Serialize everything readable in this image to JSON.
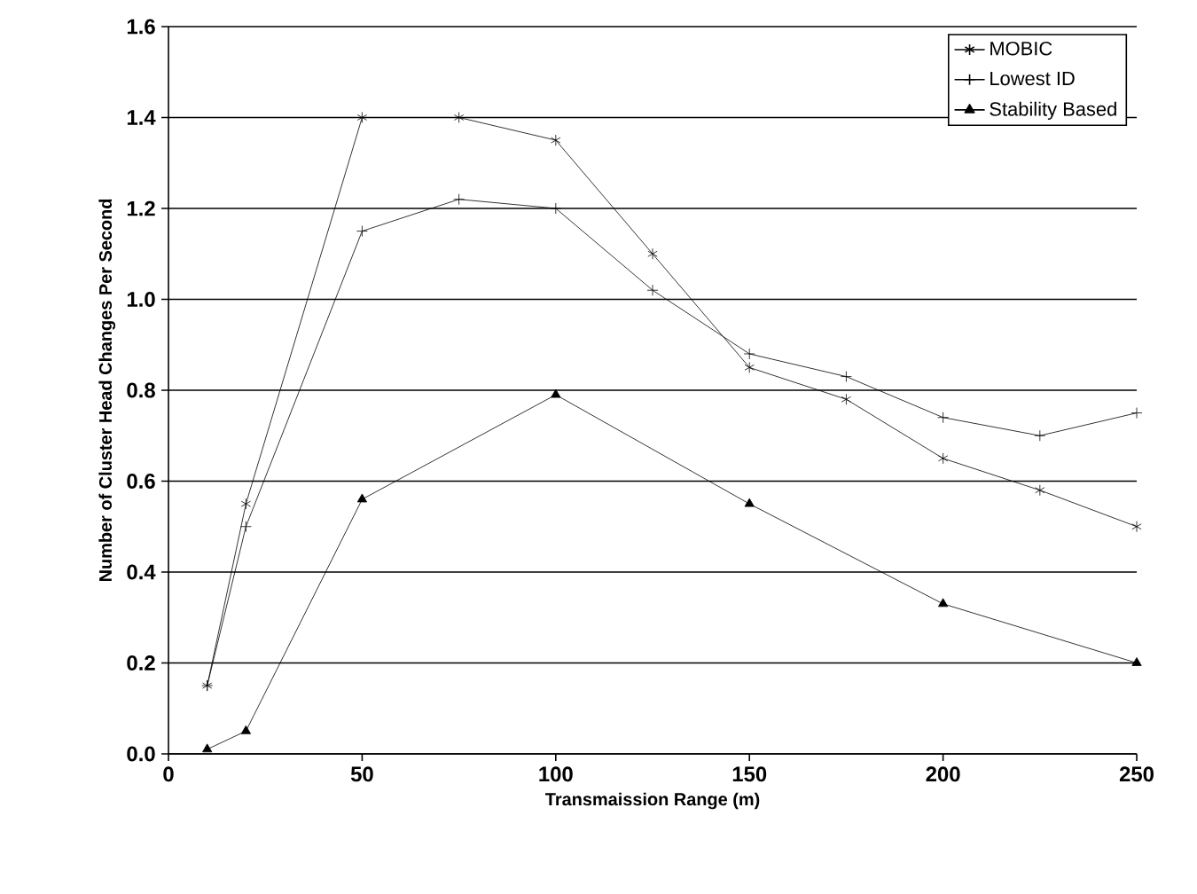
{
  "chart_data": {
    "type": "line",
    "xlabel": "Transmaission Range (m)",
    "ylabel": "Number of Cluster Head Changes Per Second",
    "xlim": [
      0,
      250
    ],
    "xticks": [
      0,
      50,
      100,
      150,
      200,
      250
    ],
    "ylim": [
      0,
      1.6
    ],
    "yticks": [
      {
        "value": 0,
        "label": "0.0"
      },
      0.2,
      0.4,
      0.6,
      0.8,
      {
        "value": 1,
        "label": "1.0"
      },
      1.2,
      1.4,
      1.6
    ],
    "grid": "y",
    "legend": "top right",
    "series": [
      {
        "name": "MOBIC",
        "color": "#000000",
        "marker": "cross",
        "x": [
          10,
          20,
          50,
          75,
          100,
          125,
          150,
          175,
          200,
          225,
          250
        ],
        "values": [
          0.15,
          0.55,
          1.4,
          1.4,
          1.35,
          1.1,
          0.85,
          0.78,
          0.65,
          0.58,
          0.5
        ]
      },
      {
        "name": "Lowest ID",
        "color": "#000000",
        "marker": "cross",
        "x": [
          10,
          20,
          50,
          75,
          100,
          125,
          150,
          175,
          200,
          225,
          250
        ],
        "values": [
          0.15,
          0.5,
          1.15,
          1.22,
          1.2,
          1.02,
          0.88,
          0.83,
          0.74,
          0.7,
          0.75
        ]
      },
      {
        "name": "Stability Based",
        "color": "#000000",
        "marker": "triangle",
        "x": [
          10,
          20,
          50,
          100,
          150,
          200,
          250
        ],
        "values": [
          0.01,
          0.05,
          0.56,
          0.79,
          0.55,
          0.33,
          0.2
        ]
      }
    ]
  }
}
